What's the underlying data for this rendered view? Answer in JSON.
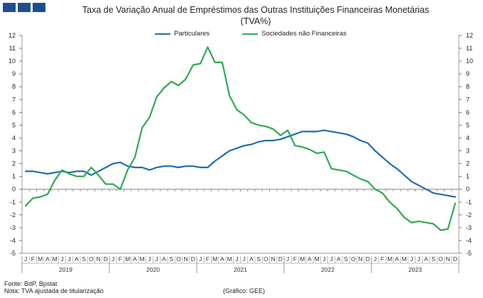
{
  "title_line1": "Taxa de Variação Anual de Empréstimos das Outras Instituições Financeiras Monetárias",
  "title_line2": "(TVA%)",
  "footer": {
    "source": "Fonte: BdP, Bpstat",
    "note": "Nota: TVA ajustada de titularização",
    "credit": "(Gráfico: GEE)"
  },
  "chart_data": {
    "type": "line",
    "title": "Taxa de Variação Anual de Empréstimos das Outras Instituições Financeiras Monetárias (TVA%)",
    "ylim": [
      -5,
      12
    ],
    "yticks": [
      -5,
      -4,
      -3,
      -2,
      -1,
      0,
      1,
      2,
      3,
      4,
      5,
      6,
      7,
      8,
      9,
      10,
      11,
      12
    ],
    "month_labels": [
      "J",
      "F",
      "M",
      "A",
      "M",
      "J",
      "J",
      "A",
      "S",
      "O",
      "N",
      "D"
    ],
    "years": [
      "2019",
      "2020",
      "2021",
      "2022",
      "2023"
    ],
    "legend_placement": "top-center",
    "series": [
      {
        "name": "Particulares",
        "color": "#1f6cb4",
        "values": [
          1.4,
          1.4,
          1.3,
          1.2,
          1.3,
          1.4,
          1.3,
          1.4,
          1.4,
          1.1,
          1.4,
          1.7,
          2.0,
          2.1,
          1.8,
          1.7,
          1.7,
          1.5,
          1.7,
          1.8,
          1.8,
          1.7,
          1.8,
          1.8,
          1.7,
          1.7,
          2.2,
          2.6,
          3.0,
          3.2,
          3.4,
          3.5,
          3.7,
          3.8,
          3.8,
          3.9,
          4.1,
          4.3,
          4.5,
          4.5,
          4.5,
          4.6,
          4.5,
          4.4,
          4.3,
          4.1,
          3.8,
          3.6,
          3.0,
          2.5,
          2.0,
          1.6,
          1.1,
          0.6,
          0.3,
          0.0,
          -0.3,
          -0.4,
          -0.5,
          -0.6
        ]
      },
      {
        "name": "Sociedades não Financeiras",
        "color": "#2eaa4e",
        "values": [
          -1.3,
          -0.7,
          -0.6,
          -0.4,
          0.7,
          1.5,
          1.2,
          1.0,
          1.0,
          1.7,
          1.1,
          0.4,
          0.4,
          0.0,
          1.5,
          2.5,
          4.8,
          5.6,
          7.2,
          7.9,
          8.4,
          8.1,
          8.6,
          9.7,
          9.8,
          11.1,
          9.9,
          9.9,
          7.3,
          6.2,
          5.8,
          5.2,
          5.0,
          4.9,
          4.7,
          4.2,
          4.6,
          3.4,
          3.3,
          3.1,
          2.8,
          2.9,
          1.6,
          1.5,
          1.4,
          1.1,
          0.8,
          0.6,
          0.0,
          -0.3,
          -1.0,
          -1.5,
          -2.2,
          -2.6,
          -2.5,
          -2.6,
          -2.7,
          -3.2,
          -3.1,
          -1.1
        ]
      }
    ]
  }
}
